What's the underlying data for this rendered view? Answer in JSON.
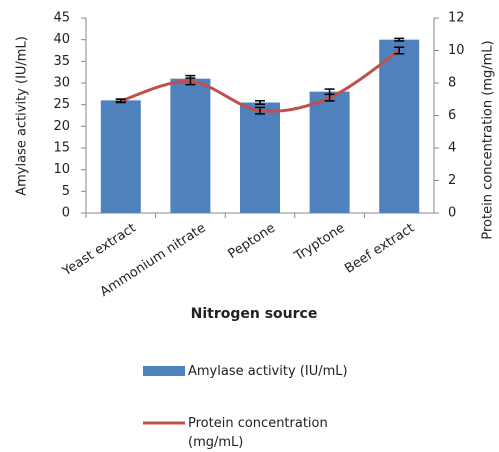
{
  "chart_data": {
    "type": "bar",
    "categories": [
      "Yeast extract",
      "Ammonium nitrate",
      "Peptone",
      "Tryptone",
      "Beef extract"
    ],
    "x_label": "Nitrogen source",
    "y_label": "Amylase activity (IU/mL)",
    "y2_label": "Protein concentration (mg/mL)",
    "ylim": [
      0,
      45
    ],
    "yticks": [
      0,
      5,
      10,
      15,
      20,
      25,
      30,
      35,
      40,
      45
    ],
    "y2lim": [
      0,
      12
    ],
    "y2ticks": [
      0,
      2,
      4,
      6,
      8,
      10,
      12
    ],
    "series": [
      {
        "name": "Amylase activity (IU/mL)",
        "type": "bar",
        "color": "#4f81bd",
        "values": [
          26,
          31,
          25.5,
          28,
          40
        ],
        "errors": [
          0.3,
          0.7,
          0.4,
          0.6,
          0.3
        ]
      },
      {
        "name": "Protein concentration (mg/mL)",
        "type": "line",
        "axis": "y2",
        "color": "#c0504d",
        "values": [
          6.9,
          8.1,
          6.3,
          7.1,
          10
        ],
        "errors": [
          0.1,
          0.2,
          0.2,
          0.2,
          0.2
        ]
      }
    ]
  }
}
